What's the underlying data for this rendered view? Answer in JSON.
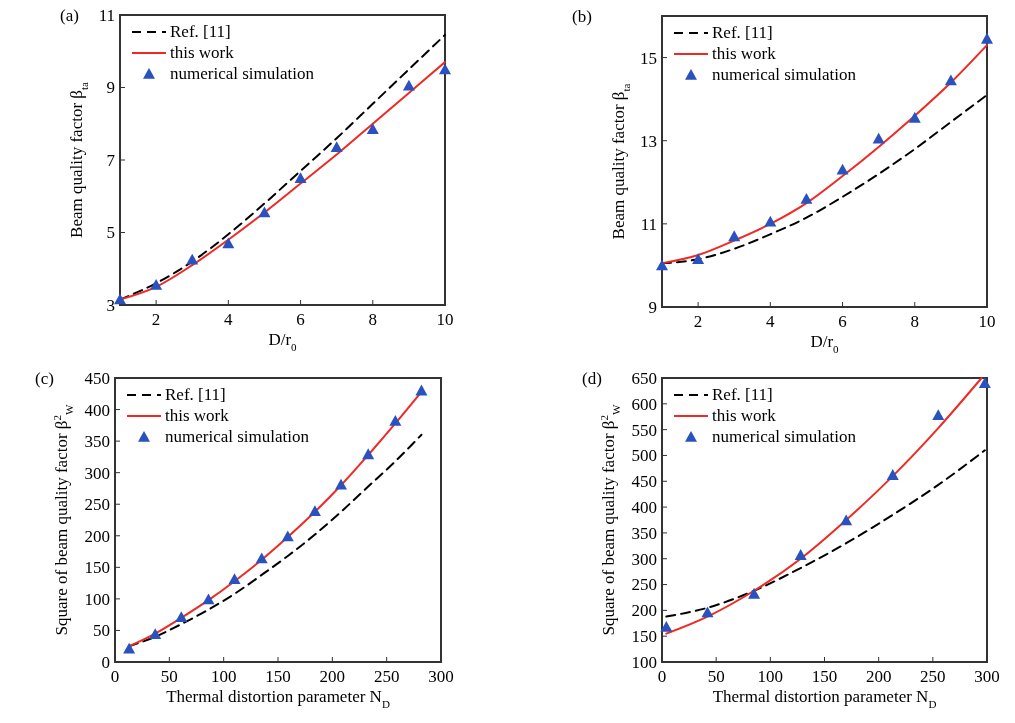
{
  "chart_data": [
    {
      "type": "line",
      "title": "(a)",
      "xlabel": "D/r$_{0}$",
      "ylabel": "Beam quality factor β$_{ta}$",
      "xlim": [
        1,
        10
      ],
      "ylim": [
        3,
        11
      ],
      "xticks": [
        2,
        4,
        6,
        8,
        10
      ],
      "yticks": [
        3,
        5,
        7,
        9,
        11
      ],
      "legend": "top left",
      "grid": false,
      "x": [
        1,
        2,
        3,
        4,
        5,
        6,
        7,
        8,
        9,
        10
      ],
      "series": [
        {
          "name": "Ref. [11]",
          "color": "#000000",
          "line_style": "dashed",
          "marker": "none",
          "values": [
            3.15,
            3.6,
            4.2,
            4.95,
            5.8,
            6.7,
            7.6,
            8.55,
            9.5,
            10.45
          ]
        },
        {
          "name": "this work",
          "color": "#ee2a24",
          "line_style": "solid",
          "marker": "none",
          "values": [
            3.15,
            3.5,
            4.1,
            4.8,
            5.55,
            6.35,
            7.15,
            8.0,
            8.85,
            9.7
          ]
        },
        {
          "name": "numerical simulation",
          "type": "scatter",
          "color": "#2a52be",
          "marker": "triangle",
          "values": [
            3.15,
            3.55,
            4.25,
            4.7,
            5.55,
            6.5,
            7.35,
            7.85,
            9.05,
            9.5
          ]
        }
      ]
    },
    {
      "type": "line",
      "title": "(b)",
      "xlabel": "D/r$_{0}$",
      "ylabel": "Beam quality factor β$_{ta}$",
      "xlim": [
        1,
        10
      ],
      "ylim": [
        9,
        16
      ],
      "xticks": [
        2,
        4,
        6,
        8,
        10
      ],
      "yticks": [
        9,
        11,
        13,
        15
      ],
      "legend": "top left",
      "grid": false,
      "x": [
        1,
        2,
        3,
        4,
        5,
        6,
        7,
        8,
        9,
        10
      ],
      "series": [
        {
          "name": "Ref. [11]",
          "color": "#000000",
          "line_style": "dashed",
          "marker": "none",
          "values": [
            10.05,
            10.15,
            10.4,
            10.75,
            11.15,
            11.65,
            12.2,
            12.8,
            13.45,
            14.1
          ]
        },
        {
          "name": "this work",
          "color": "#ee2a24",
          "line_style": "solid",
          "marker": "none",
          "values": [
            10.05,
            10.25,
            10.6,
            11.0,
            11.5,
            12.15,
            12.85,
            13.6,
            14.4,
            15.3
          ]
        },
        {
          "name": "numerical simulation",
          "type": "scatter",
          "color": "#2a52be",
          "marker": "triangle",
          "values": [
            10.0,
            10.15,
            10.7,
            11.05,
            11.6,
            12.3,
            13.05,
            13.55,
            14.45,
            15.45
          ]
        }
      ]
    },
    {
      "type": "line",
      "title": "(c)",
      "xlabel": "Thermal distortion parameter N$_{D}$",
      "ylabel": "Square of beam quality factor β$^{2}$$_{W}$",
      "xlim": [
        0,
        300
      ],
      "ylim": [
        0,
        450
      ],
      "xticks": [
        0,
        50,
        100,
        150,
        200,
        250,
        300
      ],
      "yticks": [
        0,
        50,
        100,
        150,
        200,
        250,
        300,
        350,
        400,
        450
      ],
      "legend": "top left",
      "grid": false,
      "x": [
        13,
        37,
        61,
        86,
        110,
        135,
        159,
        184,
        208,
        233,
        258,
        282
      ],
      "series": [
        {
          "name": "Ref. [11]",
          "color": "#000000",
          "line_style": "dashed",
          "marker": "none",
          "values": [
            25,
            40,
            60,
            83,
            108,
            138,
            168,
            202,
            238,
            278,
            318,
            360
          ]
        },
        {
          "name": "this work",
          "color": "#ee2a24",
          "line_style": "solid",
          "marker": "none",
          "values": [
            25,
            45,
            70,
            98,
            128,
            162,
            198,
            238,
            280,
            328,
            378,
            428
          ]
        },
        {
          "name": "numerical simulation",
          "type": "scatter",
          "color": "#2a52be",
          "marker": "triangle",
          "values": [
            21,
            44,
            71,
            99,
            131,
            164,
            199,
            239,
            281,
            329,
            382,
            430
          ]
        }
      ]
    },
    {
      "type": "line",
      "title": "(d)",
      "xlabel": "Thermal distortion parameter N$_{D}$",
      "ylabel": "Square of beam quality factor β$^{2}$$_{W}$",
      "xlim": [
        0,
        300
      ],
      "ylim": [
        100,
        650
      ],
      "xticks": [
        0,
        50,
        100,
        150,
        200,
        250,
        300
      ],
      "yticks": [
        100,
        150,
        200,
        250,
        300,
        350,
        400,
        450,
        500,
        550,
        600,
        650
      ],
      "legend": "top left",
      "grid": false,
      "x": [
        4,
        42,
        85,
        128,
        170,
        213,
        255,
        298
      ],
      "series": [
        {
          "name": "Ref. [11]",
          "color": "#000000",
          "line_style": "dashed",
          "marker": "none",
          "values": [
            188,
            205,
            238,
            282,
            330,
            385,
            443,
            510
          ]
        },
        {
          "name": "this work",
          "color": "#ee2a24",
          "line_style": "solid",
          "marker": "none",
          "x": [
            4,
            42,
            85,
            128,
            170,
            213,
            255,
            295
          ],
          "values": [
            155,
            188,
            238,
            300,
            375,
            460,
            553,
            650
          ]
        },
        {
          "name": "numerical simulation",
          "type": "scatter",
          "color": "#2a52be",
          "marker": "triangle",
          "values": [
            168,
            196,
            232,
            307,
            374,
            462,
            578,
            640
          ]
        }
      ]
    }
  ]
}
